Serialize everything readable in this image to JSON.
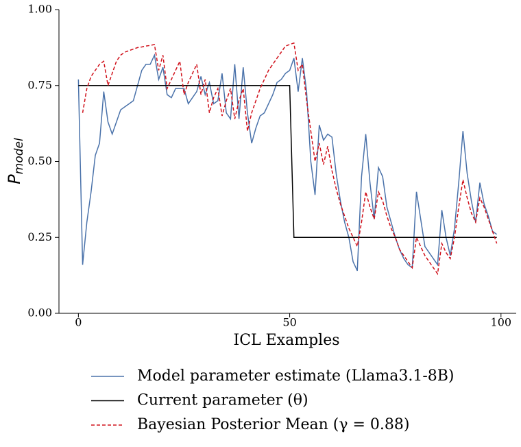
{
  "chart_data": {
    "type": "line",
    "x_label": "ICL Examples",
    "y_label": "P",
    "y_label_sub": "model",
    "xlim": [
      -4.6,
      103.6
    ],
    "ylim": [
      0,
      1
    ],
    "xticks": [
      0,
      50,
      100
    ],
    "yticks": [
      {
        "value": 0,
        "label": "0.00"
      },
      {
        "value": 0.25,
        "label": "0.25"
      },
      {
        "value": 0.5,
        "label": "0.50"
      },
      {
        "value": 0.75,
        "label": "0.75"
      },
      {
        "value": 1,
        "label": "1.00"
      }
    ],
    "x": [
      0,
      1,
      2,
      3,
      4,
      5,
      6,
      7,
      8,
      9,
      10,
      11,
      12,
      13,
      14,
      15,
      16,
      17,
      18,
      19,
      20,
      21,
      22,
      23,
      24,
      25,
      26,
      27,
      28,
      29,
      30,
      31,
      32,
      33,
      34,
      35,
      36,
      37,
      38,
      39,
      40,
      41,
      42,
      43,
      44,
      45,
      46,
      47,
      48,
      49,
      50,
      51,
      52,
      53,
      54,
      55,
      56,
      57,
      58,
      59,
      60,
      61,
      62,
      63,
      64,
      65,
      66,
      67,
      68,
      69,
      70,
      71,
      72,
      73,
      74,
      75,
      76,
      77,
      78,
      79,
      80,
      81,
      82,
      83,
      84,
      85,
      86,
      87,
      88,
      89,
      90,
      91,
      92,
      93,
      94,
      95,
      96,
      97,
      98,
      99
    ],
    "series": [
      {
        "name": "Model parameter estimate (Llama3.1-8B)",
        "color": "#4a72aa",
        "dash": false,
        "values": [
          0.77,
          0.16,
          0.3,
          0.4,
          0.52,
          0.56,
          0.73,
          0.63,
          0.59,
          0.63,
          0.67,
          0.68,
          0.69,
          0.7,
          0.75,
          0.8,
          0.82,
          0.82,
          0.85,
          0.77,
          0.81,
          0.72,
          0.71,
          0.74,
          0.74,
          0.74,
          0.69,
          0.71,
          0.73,
          0.78,
          0.72,
          0.76,
          0.69,
          0.7,
          0.79,
          0.66,
          0.64,
          0.82,
          0.64,
          0.81,
          0.66,
          0.56,
          0.61,
          0.65,
          0.66,
          0.69,
          0.72,
          0.76,
          0.77,
          0.79,
          0.8,
          0.84,
          0.73,
          0.84,
          0.73,
          0.5,
          0.39,
          0.62,
          0.57,
          0.59,
          0.58,
          0.46,
          0.37,
          0.3,
          0.25,
          0.17,
          0.14,
          0.45,
          0.59,
          0.43,
          0.31,
          0.48,
          0.45,
          0.35,
          0.3,
          0.25,
          0.21,
          0.18,
          0.16,
          0.15,
          0.4,
          0.31,
          0.22,
          0.2,
          0.18,
          0.16,
          0.34,
          0.25,
          0.19,
          0.28,
          0.43,
          0.6,
          0.46,
          0.37,
          0.3,
          0.43,
          0.36,
          0.32,
          0.27,
          0.26
        ]
      },
      {
        "name": "Current parameter (θ)",
        "color": "#000000",
        "dash": false,
        "values": [
          0.75,
          0.75,
          0.75,
          0.75,
          0.75,
          0.75,
          0.75,
          0.75,
          0.75,
          0.75,
          0.75,
          0.75,
          0.75,
          0.75,
          0.75,
          0.75,
          0.75,
          0.75,
          0.75,
          0.75,
          0.75,
          0.75,
          0.75,
          0.75,
          0.75,
          0.75,
          0.75,
          0.75,
          0.75,
          0.75,
          0.75,
          0.75,
          0.75,
          0.75,
          0.75,
          0.75,
          0.75,
          0.75,
          0.75,
          0.75,
          0.75,
          0.75,
          0.75,
          0.75,
          0.75,
          0.75,
          0.75,
          0.75,
          0.75,
          0.75,
          0.75,
          0.25,
          0.25,
          0.25,
          0.25,
          0.25,
          0.25,
          0.25,
          0.25,
          0.25,
          0.25,
          0.25,
          0.25,
          0.25,
          0.25,
          0.25,
          0.25,
          0.25,
          0.25,
          0.25,
          0.25,
          0.25,
          0.25,
          0.25,
          0.25,
          0.25,
          0.25,
          0.25,
          0.25,
          0.25,
          0.25,
          0.25,
          0.25,
          0.25,
          0.25,
          0.25,
          0.25,
          0.25,
          0.25,
          0.25,
          0.25,
          0.25,
          0.25,
          0.25,
          0.25,
          0.25,
          0.25,
          0.25,
          0.25,
          0.25
        ]
      },
      {
        "name": "Bayesian Posterior Mean (γ = 0.88)",
        "color": "#d0101a",
        "dash": true,
        "values": [
          null,
          0.66,
          0.74,
          0.78,
          0.8,
          0.82,
          0.83,
          0.75,
          0.79,
          0.83,
          0.85,
          0.86,
          0.865,
          0.87,
          0.875,
          0.877,
          0.88,
          0.882,
          0.885,
          0.8,
          0.85,
          0.74,
          0.77,
          0.8,
          0.83,
          0.72,
          0.76,
          0.79,
          0.82,
          0.72,
          0.77,
          0.66,
          0.71,
          0.74,
          0.65,
          0.7,
          0.74,
          0.64,
          0.7,
          0.74,
          0.6,
          0.66,
          0.7,
          0.74,
          0.77,
          0.8,
          0.82,
          0.84,
          0.86,
          0.88,
          0.885,
          0.89,
          0.8,
          0.82,
          0.7,
          0.6,
          0.5,
          0.56,
          0.49,
          0.55,
          0.47,
          0.41,
          0.36,
          0.32,
          0.28,
          0.25,
          0.22,
          0.3,
          0.4,
          0.35,
          0.31,
          0.4,
          0.37,
          0.32,
          0.28,
          0.25,
          0.21,
          0.19,
          0.17,
          0.15,
          0.25,
          0.22,
          0.19,
          0.17,
          0.15,
          0.13,
          0.23,
          0.2,
          0.18,
          0.25,
          0.35,
          0.44,
          0.38,
          0.33,
          0.3,
          0.38,
          0.35,
          0.31,
          0.27,
          0.23
        ]
      }
    ]
  }
}
